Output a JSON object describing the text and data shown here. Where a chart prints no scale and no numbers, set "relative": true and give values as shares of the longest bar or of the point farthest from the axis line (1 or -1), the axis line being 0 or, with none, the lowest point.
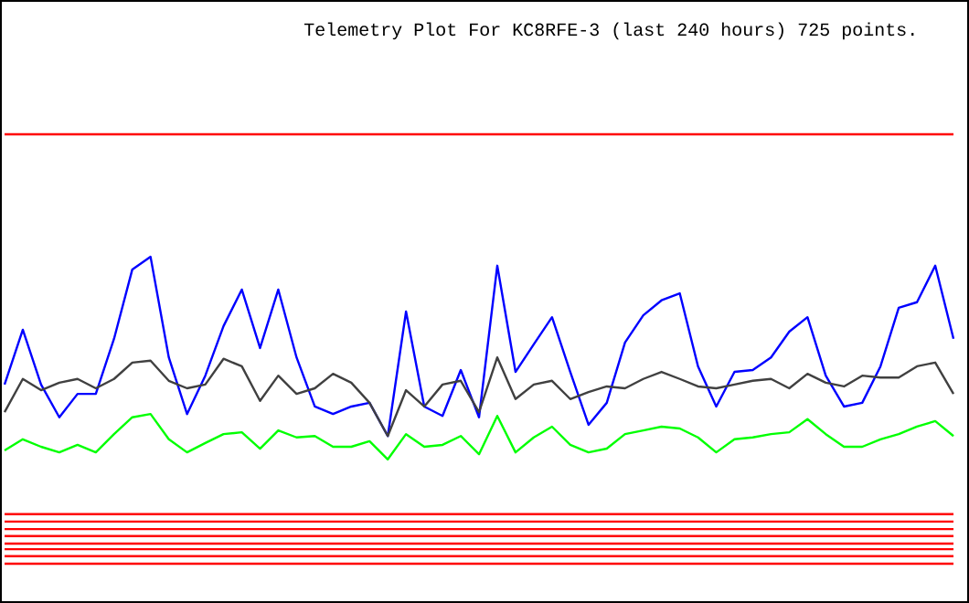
{
  "chart_data": {
    "type": "line",
    "title": "Telemetry Plot For KC8RFE-3 (last 240 hours) 725 points.",
    "relative": true,
    "categories": [
      null,
      null,
      null,
      null,
      null,
      null,
      null,
      null,
      null,
      null,
      null,
      null,
      null,
      null,
      null,
      null,
      null,
      null,
      null,
      null,
      null,
      null,
      null,
      null,
      null,
      null,
      null,
      null,
      null,
      null,
      null,
      null,
      null,
      null,
      null,
      null,
      null,
      null,
      null,
      null,
      null,
      null,
      null,
      null,
      null,
      null,
      null,
      null,
      null,
      null,
      null,
      null,
      null
    ],
    "series": [
      {
        "color": "#ff0000",
        "values": [
          1,
          1,
          1,
          1,
          1,
          1,
          1,
          1,
          1,
          1,
          1,
          1,
          1,
          1,
          1,
          1,
          1,
          1,
          1,
          1,
          1,
          1,
          1,
          1,
          1,
          1,
          1,
          1,
          1,
          1,
          1,
          1,
          1,
          1,
          1,
          1,
          1,
          1,
          1,
          1,
          1,
          1,
          1,
          1,
          1,
          1,
          1,
          1,
          1,
          1,
          1,
          1,
          1
        ]
      },
      {
        "color": "#0000ff",
        "values": [
          0.465,
          0.582,
          0.465,
          0.395,
          0.445,
          0.445,
          0.563,
          0.711,
          0.738,
          0.523,
          0.402,
          0.484,
          0.59,
          0.668,
          0.543,
          0.668,
          0.523,
          0.418,
          0.402,
          0.418,
          0.426,
          0.355,
          0.621,
          0.418,
          0.398,
          0.496,
          0.395,
          0.719,
          0.492,
          0.551,
          0.609,
          0.492,
          0.379,
          0.426,
          0.555,
          0.613,
          0.645,
          0.66,
          0.504,
          0.418,
          0.492,
          0.496,
          0.523,
          0.578,
          0.609,
          0.484,
          0.418,
          0.426,
          0.504,
          0.629,
          0.641,
          0.719,
          0.563
        ]
      },
      {
        "color": "#404040",
        "values": [
          0.406,
          0.477,
          0.453,
          0.469,
          0.477,
          0.457,
          0.477,
          0.512,
          0.516,
          0.473,
          0.457,
          0.465,
          0.52,
          0.504,
          0.43,
          0.484,
          0.445,
          0.457,
          0.488,
          0.469,
          0.426,
          0.355,
          0.453,
          0.418,
          0.465,
          0.473,
          0.406,
          0.523,
          0.434,
          0.465,
          0.473,
          0.434,
          0.449,
          0.461,
          0.457,
          0.477,
          0.492,
          0.477,
          0.461,
          0.457,
          0.465,
          0.473,
          0.477,
          0.457,
          0.488,
          0.469,
          0.461,
          0.484,
          0.48,
          0.48,
          0.504,
          0.512,
          0.445
        ]
      },
      {
        "color": "#00ff00",
        "values": [
          0.324,
          0.348,
          0.332,
          0.32,
          0.336,
          0.32,
          0.359,
          0.395,
          0.402,
          0.348,
          0.32,
          0.34,
          0.359,
          0.363,
          0.328,
          0.367,
          0.352,
          0.355,
          0.332,
          0.332,
          0.344,
          0.305,
          0.359,
          0.332,
          0.336,
          0.355,
          0.316,
          0.398,
          0.32,
          0.352,
          0.375,
          0.336,
          0.32,
          0.328,
          0.359,
          0.367,
          0.375,
          0.371,
          0.352,
          0.32,
          0.348,
          0.352,
          0.359,
          0.363,
          0.391,
          0.359,
          0.332,
          0.332,
          0.348,
          0.359,
          0.375,
          0.387,
          0.355
        ]
      },
      {
        "color": "#ff0000",
        "values": [
          0.188,
          0.188,
          0.188,
          0.188,
          0.188,
          0.188,
          0.188,
          0.188,
          0.188,
          0.188,
          0.188,
          0.188,
          0.188,
          0.188,
          0.188,
          0.188,
          0.188,
          0.188,
          0.188,
          0.188,
          0.188,
          0.188,
          0.188,
          0.188,
          0.188,
          0.188,
          0.188,
          0.188,
          0.188,
          0.188,
          0.188,
          0.188,
          0.188,
          0.188,
          0.188,
          0.188,
          0.188,
          0.188,
          0.188,
          0.188,
          0.188,
          0.188,
          0.188,
          0.188,
          0.188,
          0.188,
          0.188,
          0.188,
          0.188,
          0.188,
          0.188,
          0.188,
          0.188
        ]
      },
      {
        "color": "#ff0000",
        "values": [
          0.172,
          0.172,
          0.172,
          0.172,
          0.172,
          0.172,
          0.172,
          0.172,
          0.172,
          0.172,
          0.172,
          0.172,
          0.172,
          0.172,
          0.172,
          0.172,
          0.172,
          0.172,
          0.172,
          0.172,
          0.172,
          0.172,
          0.172,
          0.172,
          0.172,
          0.172,
          0.172,
          0.172,
          0.172,
          0.172,
          0.172,
          0.172,
          0.172,
          0.172,
          0.172,
          0.172,
          0.172,
          0.172,
          0.172,
          0.172,
          0.172,
          0.172,
          0.172,
          0.172,
          0.172,
          0.172,
          0.172,
          0.172,
          0.172,
          0.172,
          0.172,
          0.172,
          0.172
        ]
      },
      {
        "color": "#ff0000",
        "values": [
          0.156,
          0.156,
          0.156,
          0.156,
          0.156,
          0.156,
          0.156,
          0.156,
          0.156,
          0.156,
          0.156,
          0.156,
          0.156,
          0.156,
          0.156,
          0.156,
          0.156,
          0.156,
          0.156,
          0.156,
          0.156,
          0.156,
          0.156,
          0.156,
          0.156,
          0.156,
          0.156,
          0.156,
          0.156,
          0.156,
          0.156,
          0.156,
          0.156,
          0.156,
          0.156,
          0.156,
          0.156,
          0.156,
          0.156,
          0.156,
          0.156,
          0.156,
          0.156,
          0.156,
          0.156,
          0.156,
          0.156,
          0.156,
          0.156,
          0.156,
          0.156,
          0.156,
          0.156
        ]
      },
      {
        "color": "#ff0000",
        "values": [
          0.141,
          0.141,
          0.141,
          0.141,
          0.141,
          0.141,
          0.141,
          0.141,
          0.141,
          0.141,
          0.141,
          0.141,
          0.141,
          0.141,
          0.141,
          0.141,
          0.141,
          0.141,
          0.141,
          0.141,
          0.141,
          0.141,
          0.141,
          0.141,
          0.141,
          0.141,
          0.141,
          0.141,
          0.141,
          0.141,
          0.141,
          0.141,
          0.141,
          0.141,
          0.141,
          0.141,
          0.141,
          0.141,
          0.141,
          0.141,
          0.141,
          0.141,
          0.141,
          0.141,
          0.141,
          0.141,
          0.141,
          0.141,
          0.141,
          0.141,
          0.141,
          0.141,
          0.141
        ]
      },
      {
        "color": "#ff0000",
        "values": [
          0.125,
          0.125,
          0.125,
          0.125,
          0.125,
          0.125,
          0.125,
          0.125,
          0.125,
          0.125,
          0.125,
          0.125,
          0.125,
          0.125,
          0.125,
          0.125,
          0.125,
          0.125,
          0.125,
          0.125,
          0.125,
          0.125,
          0.125,
          0.125,
          0.125,
          0.125,
          0.125,
          0.125,
          0.125,
          0.125,
          0.125,
          0.125,
          0.125,
          0.125,
          0.125,
          0.125,
          0.125,
          0.125,
          0.125,
          0.125,
          0.125,
          0.125,
          0.125,
          0.125,
          0.125,
          0.125,
          0.125,
          0.125,
          0.125,
          0.125,
          0.125,
          0.125,
          0.125
        ]
      },
      {
        "color": "#ff0000",
        "values": [
          0.113,
          0.113,
          0.113,
          0.113,
          0.113,
          0.113,
          0.113,
          0.113,
          0.113,
          0.113,
          0.113,
          0.113,
          0.113,
          0.113,
          0.113,
          0.113,
          0.113,
          0.113,
          0.113,
          0.113,
          0.113,
          0.113,
          0.113,
          0.113,
          0.113,
          0.113,
          0.113,
          0.113,
          0.113,
          0.113,
          0.113,
          0.113,
          0.113,
          0.113,
          0.113,
          0.113,
          0.113,
          0.113,
          0.113,
          0.113,
          0.113,
          0.113,
          0.113,
          0.113,
          0.113,
          0.113,
          0.113,
          0.113,
          0.113,
          0.113,
          0.113,
          0.113,
          0.113
        ]
      },
      {
        "color": "#ff0000",
        "values": [
          0.098,
          0.098,
          0.098,
          0.098,
          0.098,
          0.098,
          0.098,
          0.098,
          0.098,
          0.098,
          0.098,
          0.098,
          0.098,
          0.098,
          0.098,
          0.098,
          0.098,
          0.098,
          0.098,
          0.098,
          0.098,
          0.098,
          0.098,
          0.098,
          0.098,
          0.098,
          0.098,
          0.098,
          0.098,
          0.098,
          0.098,
          0.098,
          0.098,
          0.098,
          0.098,
          0.098,
          0.098,
          0.098,
          0.098,
          0.098,
          0.098,
          0.098,
          0.098,
          0.098,
          0.098,
          0.098,
          0.098,
          0.098,
          0.098,
          0.098,
          0.098,
          0.098,
          0.098
        ]
      },
      {
        "color": "#ff0000",
        "values": [
          0.082,
          0.082,
          0.082,
          0.082,
          0.082,
          0.082,
          0.082,
          0.082,
          0.082,
          0.082,
          0.082,
          0.082,
          0.082,
          0.082,
          0.082,
          0.082,
          0.082,
          0.082,
          0.082,
          0.082,
          0.082,
          0.082,
          0.082,
          0.082,
          0.082,
          0.082,
          0.082,
          0.082,
          0.082,
          0.082,
          0.082,
          0.082,
          0.082,
          0.082,
          0.082,
          0.082,
          0.082,
          0.082,
          0.082,
          0.082,
          0.082,
          0.082,
          0.082,
          0.082,
          0.082,
          0.082,
          0.082,
          0.082,
          0.082,
          0.082,
          0.082,
          0.082,
          0.082
        ]
      }
    ]
  }
}
